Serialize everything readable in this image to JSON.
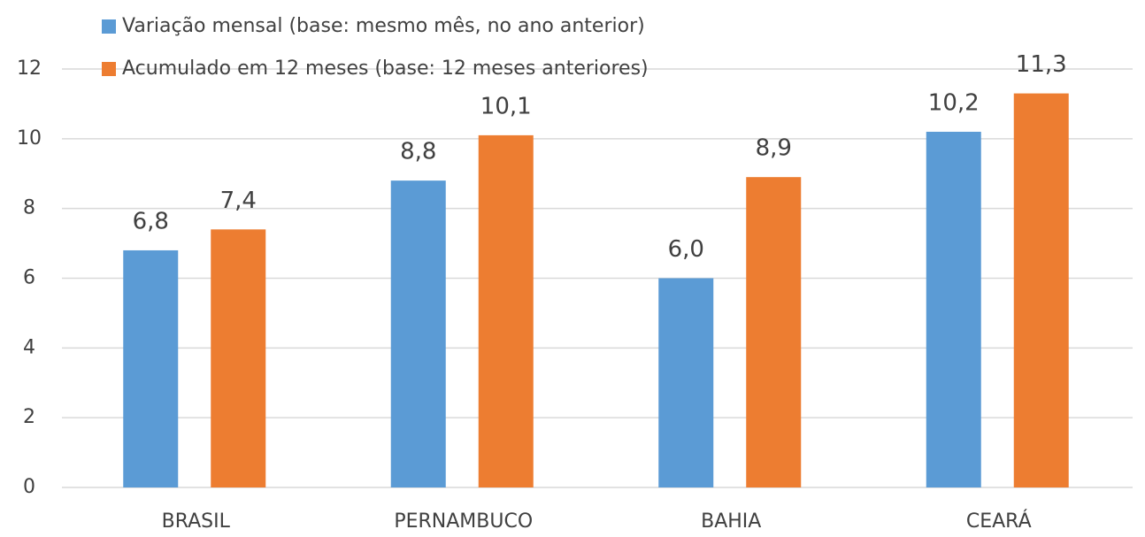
{
  "chart_data": {
    "type": "bar",
    "categories": [
      "BRASIL",
      "PERNAMBUCO",
      "BAHIA",
      "CEARÁ"
    ],
    "series": [
      {
        "name": "Variação mensal (base: mesmo mês, no ano anterior)",
        "color": "#5b9bd5",
        "values": [
          6.8,
          8.8,
          6.0,
          10.2
        ],
        "value_labels": [
          "6,8",
          "8,8",
          "6,0",
          "10,2"
        ]
      },
      {
        "name": "Acumulado em 12 meses (base: 12 meses anteriores)",
        "color": "#ed7d31",
        "values": [
          7.4,
          10.1,
          8.9,
          11.3
        ],
        "value_labels": [
          "7,4",
          "10,1",
          "8,9",
          "11,3"
        ]
      }
    ],
    "ylim": [
      0,
      12
    ],
    "yticks": [
      0,
      2,
      4,
      6,
      8,
      10,
      12
    ],
    "grid": true,
    "legend": "top-left"
  }
}
